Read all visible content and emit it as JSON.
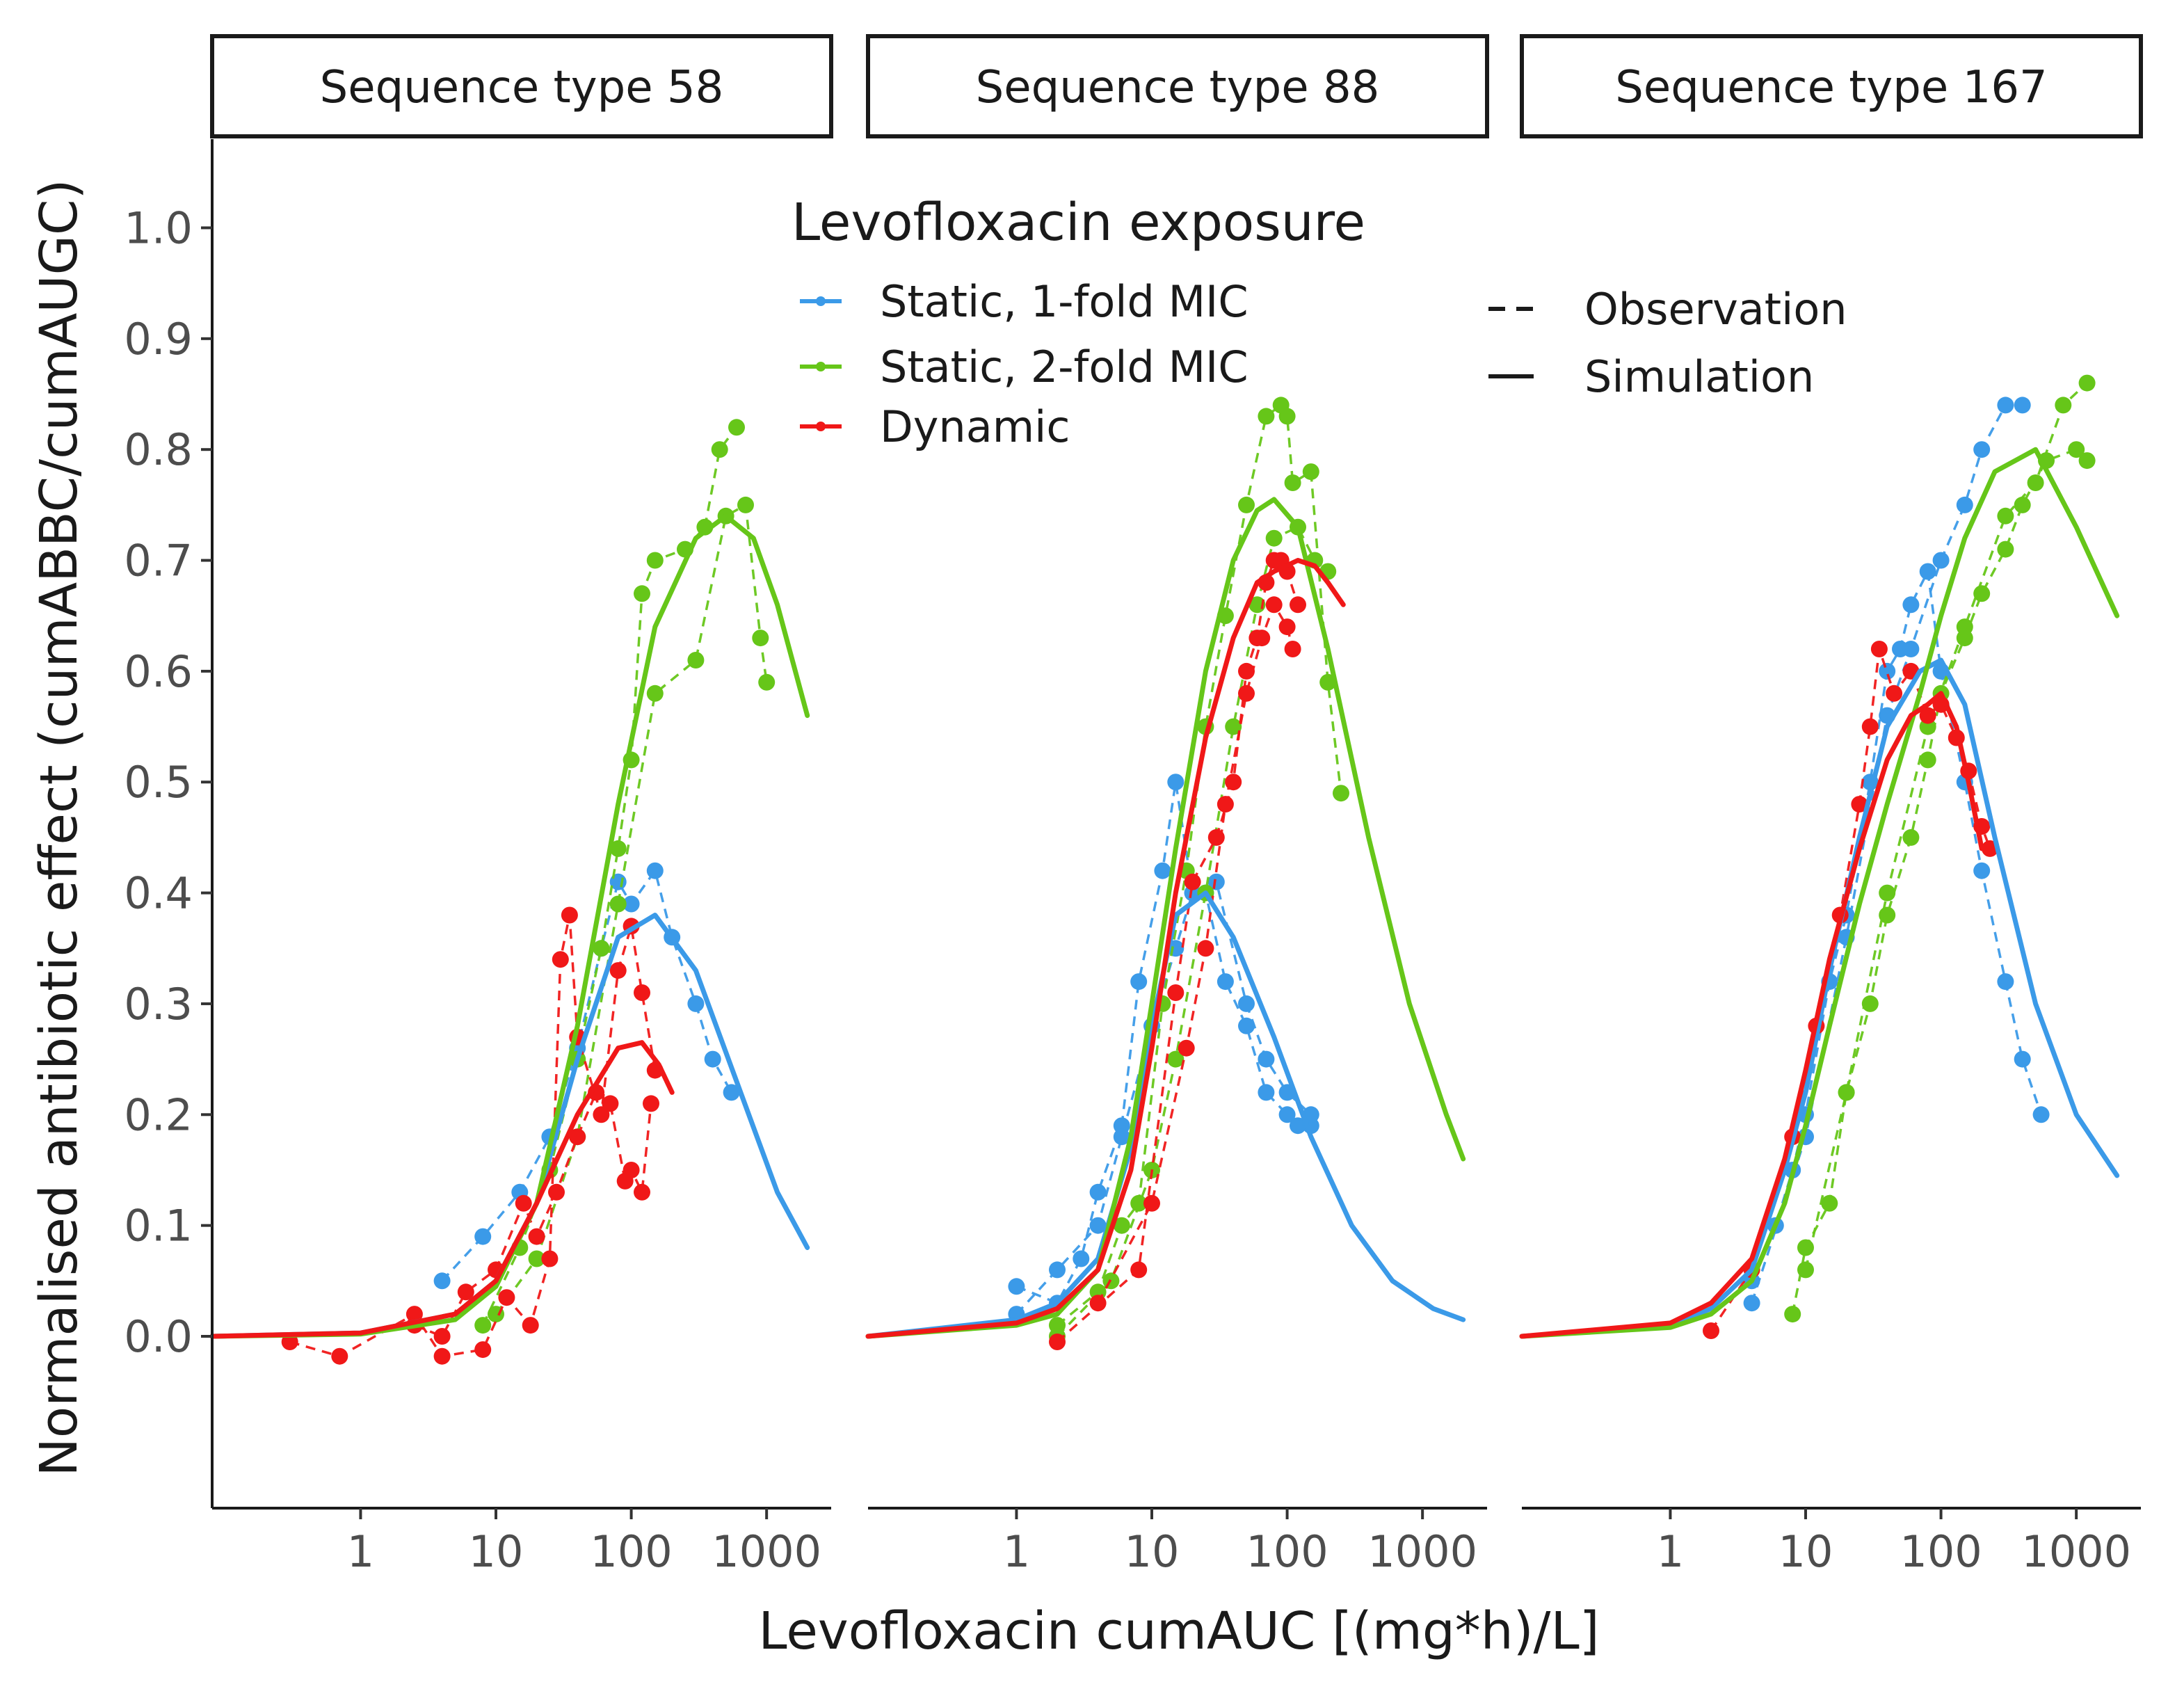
{
  "chart_data": {
    "type": "line",
    "xlabel": "Levofloxacin cumAUC [(mg*h)/L]",
    "ylabel": "Normalised antibiotic effect (cumABBC/cumAUGC)",
    "xscale": "log10",
    "xlim": [
      0.08,
      3000
    ],
    "ylim": [
      -0.155,
      1.08
    ],
    "x_ticks": [
      1,
      10,
      100,
      1000
    ],
    "x_tick_labels": [
      "1",
      "10",
      "100",
      "1000"
    ],
    "y_ticks": [
      0.0,
      0.1,
      0.2,
      0.3,
      0.4,
      0.5,
      0.6,
      0.7,
      0.8,
      0.9,
      1.0
    ],
    "y_tick_labels": [
      "0.0",
      "0.1",
      "0.2",
      "0.3",
      "0.4",
      "0.5",
      "0.6",
      "0.7",
      "0.8",
      "0.9",
      "1.0"
    ],
    "grid": false,
    "legend": {
      "title": "Levofloxacin exposure",
      "position": "top-center",
      "color_entries": [
        {
          "label": "Static, 1-fold MIC",
          "color": "#3b9ae8"
        },
        {
          "label": "Static, 2-fold MIC",
          "color": "#66c619"
        },
        {
          "label": "Dynamic",
          "color": "#f01818"
        }
      ],
      "linetype_entries": [
        {
          "label": "Observation",
          "style": "dashed"
        },
        {
          "label": "Simulation",
          "style": "solid"
        }
      ]
    },
    "panels": [
      {
        "title": "Sequence type 58",
        "series": [
          {
            "name": "Static, 1-fold MIC",
            "kind": "simulation",
            "x": [
              0.08,
              1,
              5,
              10,
              20,
              40,
              80,
              150,
              300,
              600,
              1200,
              2000
            ],
            "y": [
              0.0,
              0.003,
              0.02,
              0.05,
              0.12,
              0.25,
              0.36,
              0.38,
              0.33,
              0.23,
              0.13,
              0.08
            ]
          },
          {
            "name": "Static, 2-fold MIC",
            "kind": "simulation",
            "x": [
              0.08,
              1,
              5,
              10,
              20,
              40,
              80,
              150,
              300,
              500,
              800,
              1200,
              2000
            ],
            "y": [
              0.0,
              0.002,
              0.015,
              0.045,
              0.12,
              0.28,
              0.48,
              0.64,
              0.72,
              0.74,
              0.72,
              0.66,
              0.56
            ]
          },
          {
            "name": "Dynamic",
            "kind": "simulation",
            "x": [
              0.08,
              1,
              5,
              10,
              20,
              40,
              80,
              120,
              160,
              200
            ],
            "y": [
              0.0,
              0.003,
              0.02,
              0.05,
              0.12,
              0.2,
              0.26,
              0.265,
              0.245,
              0.22
            ]
          },
          {
            "name": "Static, 1-fold MIC",
            "kind": "observation",
            "x": [
              4,
              8,
              15,
              25,
              40,
              60,
              80,
              100,
              150,
              200,
              300,
              400,
              550
            ],
            "y": [
              0.05,
              0.09,
              0.13,
              0.18,
              0.26,
              0.35,
              0.41,
              0.39,
              0.42,
              0.36,
              0.3,
              0.25,
              0.22
            ]
          },
          {
            "name": "Static, 2-fold MIC",
            "kind": "observation",
            "x": [
              8,
              15,
              25,
              40,
              60,
              80,
              100,
              120,
              150,
              250,
              350,
              450,
              600
            ],
            "y": [
              0.01,
              0.08,
              0.15,
              0.25,
              0.35,
              0.44,
              0.52,
              0.67,
              0.7,
              0.71,
              0.73,
              0.8,
              0.82
            ]
          },
          {
            "name": "Static, 2-fold MIC",
            "kind": "observation",
            "x": [
              10,
              20,
              40,
              80,
              150,
              300,
              500,
              700,
              900,
              1000
            ],
            "y": [
              0.02,
              0.07,
              0.18,
              0.39,
              0.58,
              0.61,
              0.74,
              0.75,
              0.63,
              0.59
            ]
          },
          {
            "name": "Dynamic",
            "kind": "observation",
            "x": [
              0.3,
              0.7,
              2.5,
              4,
              8,
              12,
              18,
              25,
              30,
              35,
              40,
              60,
              80,
              100,
              120,
              150
            ],
            "y": [
              -0.005,
              -0.018,
              0.02,
              -0.018,
              -0.012,
              0.035,
              0.01,
              0.07,
              0.34,
              0.38,
              0.27,
              0.2,
              0.33,
              0.37,
              0.31,
              0.24
            ]
          },
          {
            "name": "Dynamic",
            "kind": "observation",
            "x": [
              2.5,
              4,
              6,
              10,
              16,
              20,
              28,
              40,
              55,
              70,
              90,
              100,
              120,
              140
            ],
            "y": [
              0.01,
              0.0,
              0.04,
              0.06,
              0.12,
              0.09,
              0.13,
              0.18,
              0.22,
              0.21,
              0.14,
              0.15,
              0.13,
              0.21
            ]
          }
        ]
      },
      {
        "title": "Sequence type 88",
        "series": [
          {
            "name": "Static, 1-fold MIC",
            "kind": "simulation",
            "x": [
              0.08,
              1,
              2,
              4,
              7,
              10,
              15,
              25,
              40,
              80,
              150,
              300,
              600,
              1200,
              2000
            ],
            "y": [
              0.0,
              0.015,
              0.03,
              0.07,
              0.17,
              0.28,
              0.38,
              0.4,
              0.36,
              0.27,
              0.18,
              0.1,
              0.05,
              0.025,
              0.015
            ]
          },
          {
            "name": "Static, 2-fold MIC",
            "kind": "simulation",
            "x": [
              0.08,
              1,
              2,
              4,
              7,
              10,
              15,
              25,
              40,
              60,
              80,
              120,
              200,
              400,
              800,
              1500,
              2000
            ],
            "y": [
              0.0,
              0.01,
              0.02,
              0.06,
              0.18,
              0.3,
              0.44,
              0.6,
              0.7,
              0.745,
              0.755,
              0.73,
              0.62,
              0.45,
              0.3,
              0.2,
              0.16
            ]
          },
          {
            "name": "Dynamic",
            "kind": "simulation",
            "x": [
              0.08,
              1,
              2,
              4,
              7,
              10,
              15,
              25,
              40,
              60,
              80,
              120,
              160,
              200,
              260
            ],
            "y": [
              0.0,
              0.012,
              0.025,
              0.06,
              0.15,
              0.26,
              0.4,
              0.54,
              0.63,
              0.68,
              0.69,
              0.7,
              0.695,
              0.68,
              0.66
            ]
          },
          {
            "name": "Static, 1-fold MIC",
            "kind": "observation",
            "x": [
              1,
              2,
              3,
              4,
              6,
              8,
              12,
              15,
              20,
              25,
              35,
              50,
              70,
              100,
              120,
              150
            ],
            "y": [
              0.045,
              0.03,
              0.07,
              0.13,
              0.19,
              0.32,
              0.42,
              0.5,
              0.4,
              0.4,
              0.32,
              0.28,
              0.22,
              0.2,
              0.19,
              0.19
            ]
          },
          {
            "name": "Static, 1-fold MIC",
            "kind": "observation",
            "x": [
              1,
              2,
              4,
              6,
              10,
              15,
              20,
              30,
              50,
              70,
              100,
              150
            ],
            "y": [
              0.02,
              0.06,
              0.1,
              0.18,
              0.28,
              0.35,
              0.4,
              0.41,
              0.3,
              0.25,
              0.22,
              0.2
            ]
          },
          {
            "name": "Static, 2-fold MIC",
            "kind": "observation",
            "x": [
              2,
              4,
              6,
              8,
              12,
              18,
              25,
              35,
              50,
              70,
              90,
              100,
              110,
              150,
              200,
              250
            ],
            "y": [
              0.01,
              0.04,
              0.1,
              0.12,
              0.3,
              0.42,
              0.55,
              0.65,
              0.75,
              0.83,
              0.84,
              0.83,
              0.77,
              0.78,
              0.59,
              0.49
            ]
          },
          {
            "name": "Static, 2-fold MIC",
            "kind": "observation",
            "x": [
              2,
              5,
              10,
              15,
              25,
              40,
              60,
              80,
              120,
              160,
              200
            ],
            "y": [
              0.0,
              0.05,
              0.15,
              0.25,
              0.4,
              0.55,
              0.66,
              0.72,
              0.73,
              0.7,
              0.69
            ]
          },
          {
            "name": "Dynamic",
            "kind": "observation",
            "x": [
              2,
              8,
              15,
              20,
              30,
              40,
              50,
              60,
              70,
              80,
              90,
              100,
              120
            ],
            "y": [
              -0.005,
              0.06,
              0.31,
              0.41,
              0.45,
              0.5,
              0.6,
              0.63,
              0.68,
              0.7,
              0.7,
              0.69,
              0.66
            ]
          },
          {
            "name": "Dynamic",
            "kind": "observation",
            "x": [
              4,
              10,
              18,
              25,
              35,
              50,
              65,
              80,
              100,
              110
            ],
            "y": [
              0.03,
              0.12,
              0.26,
              0.35,
              0.48,
              0.58,
              0.63,
              0.66,
              0.64,
              0.62
            ]
          }
        ]
      },
      {
        "title": "Sequence type 167",
        "series": [
          {
            "name": "Static, 1-fold MIC",
            "kind": "simulation",
            "x": [
              0.08,
              1,
              2,
              4,
              7,
              10,
              15,
              25,
              40,
              70,
              100,
              150,
              250,
              500,
              1000,
              2000
            ],
            "y": [
              0.0,
              0.01,
              0.025,
              0.06,
              0.15,
              0.22,
              0.33,
              0.45,
              0.55,
              0.6,
              0.61,
              0.57,
              0.45,
              0.3,
              0.2,
              0.145
            ]
          },
          {
            "name": "Static, 2-fold MIC",
            "kind": "simulation",
            "x": [
              0.08,
              1,
              2,
              4,
              7,
              10,
              15,
              25,
              40,
              70,
              100,
              150,
              250,
              500,
              1000,
              2000
            ],
            "y": [
              0.0,
              0.008,
              0.02,
              0.05,
              0.12,
              0.19,
              0.28,
              0.39,
              0.48,
              0.58,
              0.65,
              0.72,
              0.78,
              0.8,
              0.73,
              0.65
            ]
          },
          {
            "name": "Dynamic",
            "kind": "simulation",
            "x": [
              0.08,
              1,
              2,
              4,
              7,
              10,
              15,
              25,
              40,
              60,
              80,
              100,
              130,
              160,
              200
            ],
            "y": [
              0.0,
              0.012,
              0.03,
              0.07,
              0.16,
              0.24,
              0.34,
              0.44,
              0.52,
              0.56,
              0.57,
              0.58,
              0.55,
              0.5,
              0.44
            ]
          },
          {
            "name": "Static, 1-fold MIC",
            "kind": "observation",
            "x": [
              4,
              6,
              8,
              10,
              15,
              20,
              30,
              40,
              50,
              60,
              80,
              100,
              150,
              200,
              300,
              400,
              550
            ],
            "y": [
              0.05,
              0.1,
              0.15,
              0.2,
              0.32,
              0.38,
              0.5,
              0.6,
              0.62,
              0.66,
              0.69,
              0.6,
              0.5,
              0.42,
              0.32,
              0.25,
              0.2
            ]
          },
          {
            "name": "Static, 1-fold MIC",
            "kind": "observation",
            "x": [
              4,
              10,
              20,
              40,
              60,
              100,
              150,
              200,
              300,
              400
            ],
            "y": [
              0.03,
              0.18,
              0.36,
              0.56,
              0.62,
              0.7,
              0.75,
              0.8,
              0.84,
              0.84
            ]
          },
          {
            "name": "Static, 2-fold MIC",
            "kind": "observation",
            "x": [
              8,
              10,
              15,
              20,
              30,
              40,
              60,
              80,
              100,
              150,
              200,
              300,
              400,
              600,
              1000,
              1200
            ],
            "y": [
              0.02,
              0.08,
              0.12,
              0.22,
              0.3,
              0.38,
              0.45,
              0.52,
              0.58,
              0.63,
              0.67,
              0.71,
              0.75,
              0.79,
              0.8,
              0.79
            ]
          },
          {
            "name": "Static, 2-fold MIC",
            "kind": "observation",
            "x": [
              10,
              20,
              40,
              80,
              150,
              300,
              500,
              800,
              1200
            ],
            "y": [
              0.06,
              0.22,
              0.4,
              0.55,
              0.64,
              0.74,
              0.77,
              0.84,
              0.86
            ]
          },
          {
            "name": "Dynamic",
            "kind": "observation",
            "x": [
              2,
              4,
              8,
              12,
              18,
              25,
              30,
              35,
              45,
              60,
              80,
              100,
              130,
              160,
              200,
              230
            ],
            "y": [
              0.005,
              0.06,
              0.18,
              0.28,
              0.38,
              0.48,
              0.55,
              0.62,
              0.58,
              0.6,
              0.56,
              0.57,
              0.54,
              0.51,
              0.46,
              0.44
            ]
          }
        ]
      }
    ]
  }
}
